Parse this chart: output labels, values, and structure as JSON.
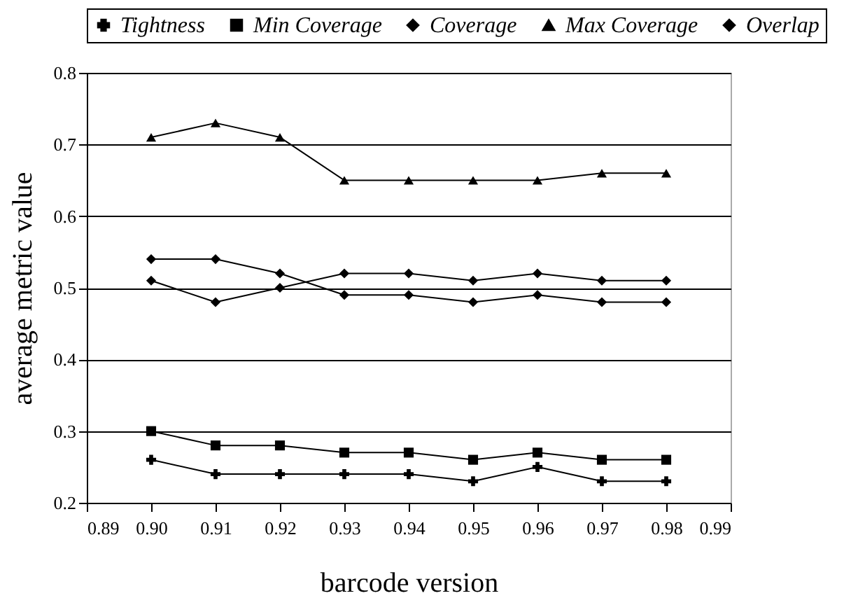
{
  "chart_data": {
    "type": "line",
    "xlabel": "barcode version",
    "ylabel": "average metric value",
    "x": [
      0.9,
      0.91,
      0.92,
      0.93,
      0.94,
      0.95,
      0.96,
      0.97,
      0.98
    ],
    "xlim": [
      0.89,
      0.99
    ],
    "xticks": [
      {
        "value": 0.89,
        "label": "0.89"
      },
      {
        "value": 0.9,
        "label": "0.90"
      },
      {
        "value": 0.91,
        "label": "0.91"
      },
      {
        "value": 0.92,
        "label": "0.92"
      },
      {
        "value": 0.93,
        "label": "0.93"
      },
      {
        "value": 0.94,
        "label": "0.94"
      },
      {
        "value": 0.95,
        "label": "0.95"
      },
      {
        "value": 0.96,
        "label": "0.96"
      },
      {
        "value": 0.97,
        "label": "0.97"
      },
      {
        "value": 0.98,
        "label": "0.98"
      },
      {
        "value": 0.99,
        "label": "0.99"
      }
    ],
    "ylim": [
      0.2,
      0.8
    ],
    "yticks": [
      0.2,
      0.3,
      0.4,
      0.5,
      0.6,
      0.7,
      0.8
    ],
    "grid": "y",
    "legend": "top",
    "line_style": "solid",
    "series": [
      {
        "name": "Tightness",
        "color": "#000000",
        "marker": "cross",
        "values": [
          0.26,
          0.24,
          0.24,
          0.24,
          0.24,
          0.23,
          0.25,
          0.23,
          0.23
        ]
      },
      {
        "name": "Min Coverage",
        "color": "#000000",
        "marker": "square",
        "values": [
          0.3,
          0.28,
          0.28,
          0.27,
          0.27,
          0.26,
          0.27,
          0.26,
          0.26
        ]
      },
      {
        "name": "Coverage",
        "color": "#000000",
        "marker": "diamond",
        "values": [
          0.54,
          0.54,
          0.52,
          0.49,
          0.49,
          0.48,
          0.49,
          0.48,
          0.48
        ]
      },
      {
        "name": "Max Coverage",
        "color": "#000000",
        "marker": "triangle",
        "values": [
          0.71,
          0.73,
          0.71,
          0.65,
          0.65,
          0.65,
          0.65,
          0.66,
          0.66
        ]
      },
      {
        "name": "Overlap",
        "color": "#000000",
        "marker": "diamond",
        "values": [
          0.51,
          0.48,
          0.5,
          0.52,
          0.52,
          0.51,
          0.52,
          0.51,
          0.51
        ]
      }
    ]
  }
}
